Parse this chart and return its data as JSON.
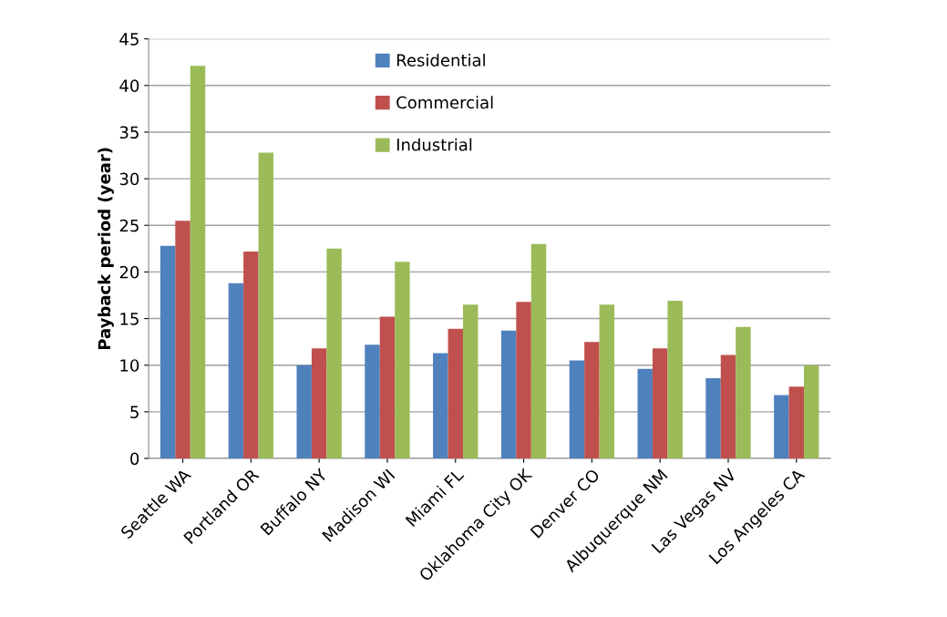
{
  "chart_data": {
    "type": "bar",
    "ylabel": "Payback period (year)",
    "categories": [
      "Seattle WA",
      "Portland OR",
      "Buffalo NY",
      "Madison WI",
      "Miami FL",
      "Oklahoma City OK",
      "Denver CO",
      "Albuquerque NM",
      "Las Vegas NV",
      "Los Angeles CA"
    ],
    "series": [
      {
        "name": "Residential",
        "color": "#4f81bd",
        "values": [
          22.8,
          18.8,
          10.0,
          12.2,
          11.3,
          13.7,
          10.5,
          9.6,
          8.6,
          6.8
        ]
      },
      {
        "name": "Commercial",
        "color": "#c0504d",
        "values": [
          25.5,
          22.2,
          11.8,
          15.2,
          13.9,
          16.8,
          12.5,
          11.8,
          11.1,
          7.7
        ]
      },
      {
        "name": "Industrial",
        "color": "#9bbb59",
        "values": [
          42.1,
          32.8,
          22.5,
          21.1,
          16.5,
          23.0,
          16.5,
          16.9,
          14.1,
          10.0
        ]
      }
    ],
    "ylim": [
      0,
      45
    ],
    "yticks": [
      0,
      5,
      10,
      15,
      20,
      25,
      30,
      35,
      40,
      45
    ],
    "grid": "y",
    "legend": "top"
  }
}
